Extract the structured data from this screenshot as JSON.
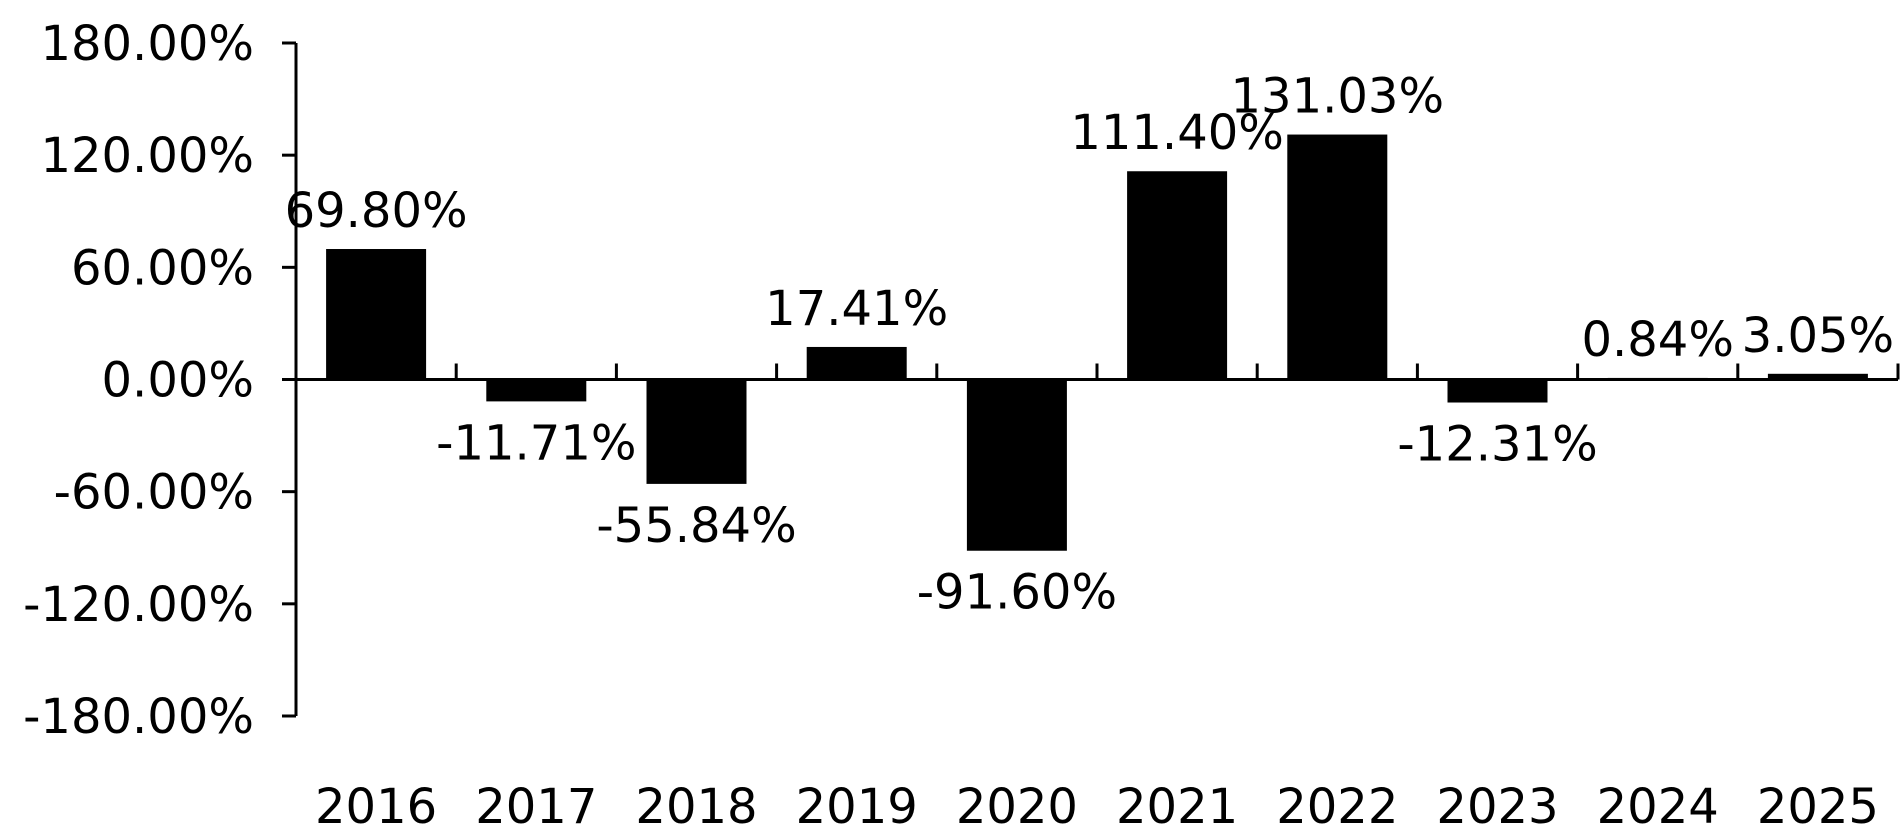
{
  "chart_data": {
    "type": "bar",
    "categories": [
      "2016",
      "2017",
      "2018",
      "2019",
      "2020",
      "2021",
      "2022",
      "2023",
      "2024",
      "2025"
    ],
    "values": [
      69.8,
      -11.71,
      -55.84,
      17.41,
      -91.6,
      111.4,
      131.03,
      -12.31,
      0.84,
      3.05
    ],
    "data_labels": [
      "69.80%",
      "-11.71%",
      "-55.84%",
      "17.41%",
      "-91.60%",
      "111.40%",
      "131.03%",
      "-12.31%",
      "0.84%",
      "3.05%"
    ],
    "y_ticks": [
      180,
      120,
      60,
      0,
      -60,
      -120,
      -180
    ],
    "y_tick_labels": [
      "180.00%",
      "120.00%",
      "60.00%",
      "0.00%",
      "-60.00%",
      "-120.00%",
      "-180.00%"
    ],
    "ylim": [
      -180,
      180
    ],
    "title": "",
    "xlabel": "",
    "ylabel": "",
    "grid": false,
    "legend": "none",
    "bar_color": "#000000",
    "axis_color": "#000000"
  }
}
